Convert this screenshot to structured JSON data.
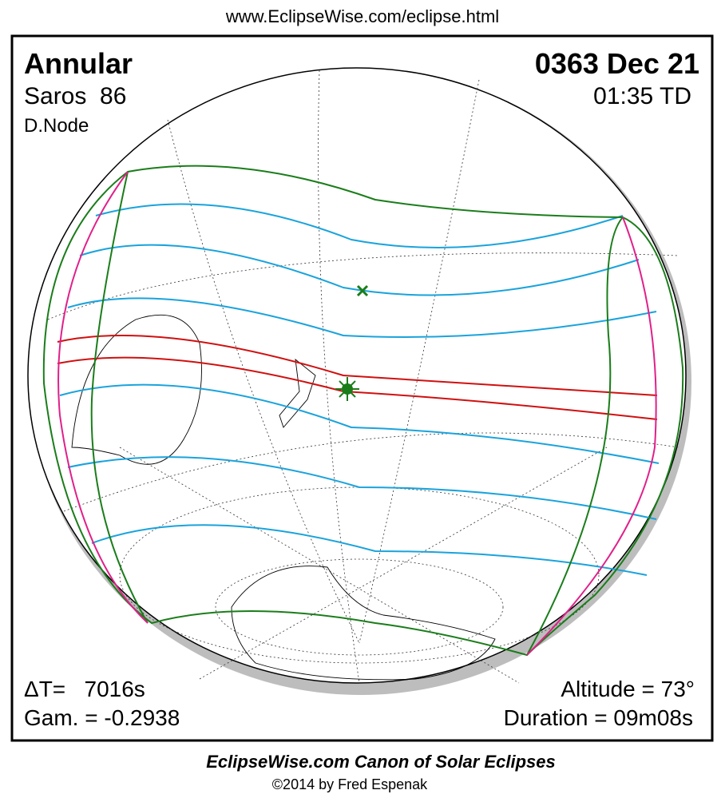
{
  "header": {
    "url": "www.EclipseWise.com/eclipse.html"
  },
  "panel": {
    "eclipse_type": "Annular",
    "saros": "Saros  86",
    "node": "D.Node",
    "date": "0363 Dec 21",
    "time": "01:35 TD",
    "delta_t": "ΔT=   7016s",
    "gamma": "Gam. = -0.2938",
    "altitude": "Altitude = 73°",
    "duration": "Duration = 09m08s"
  },
  "footer": {
    "title": "EclipseWise.com Canon of Solar Eclipses",
    "copyright": "©2014 by Fred Espenak"
  }
}
